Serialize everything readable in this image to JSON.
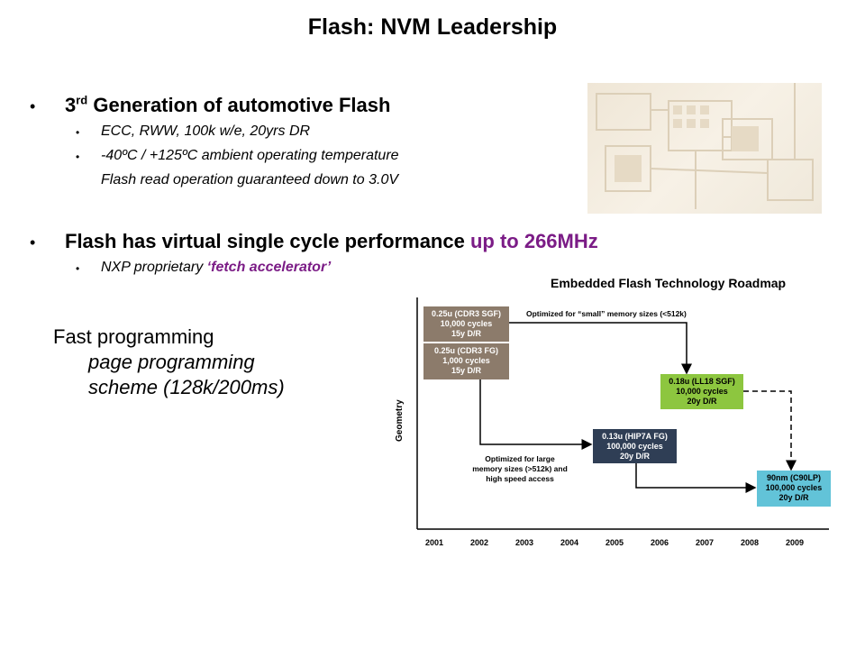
{
  "slide": {
    "title": "Flash: NVM Leadership"
  },
  "bullets": {
    "b1": {
      "pre": "3",
      "sup": "rd",
      "post": " Generation of automotive Flash",
      "sub1": "ECC, RWW, 100k w/e, 20yrs DR",
      "sub2": "-40ºC / +125ºC ambient operating temperature",
      "sub2_cont": "Flash read operation guaranteed down to 3.0V"
    },
    "b2": {
      "main": "Flash has virtual single cycle performance ",
      "accent": "up to 266MHz",
      "sub_pre": "NXP proprietary ",
      "sub_accent": "‘fetch accelerator’"
    },
    "fast": {
      "line1": "Fast programming",
      "line2": "page programming",
      "line3": "scheme (128k/200ms)"
    }
  },
  "chart_data": {
    "type": "diagram",
    "title": "Embedded Flash Technology Roadmap",
    "ylabel": "Geometry",
    "x_ticks": [
      "2001",
      "2002",
      "2003",
      "2004",
      "2005",
      "2006",
      "2007",
      "2008",
      "2009"
    ],
    "nodes": [
      {
        "id": "cdr3sgf",
        "lines": [
          "0.25u (CDR3 SGF)",
          "10,000 cycles",
          "15y D/R"
        ],
        "color": "#8c7b6b",
        "text_color": "#ffffff"
      },
      {
        "id": "cdr3fg",
        "lines": [
          "0.25u (CDR3 FG)",
          "1,000 cycles",
          "15y D/R"
        ],
        "color": "#8c7b6b",
        "text_color": "#ffffff"
      },
      {
        "id": "ll18",
        "lines": [
          "0.18u (LL18 SGF)",
          "10,000 cycles",
          "20y D/R"
        ],
        "color": "#8dc63f",
        "text_color": "#000000"
      },
      {
        "id": "hip7a",
        "lines": [
          "0.13u (HIP7A FG)",
          "100,000 cycles",
          "20y D/R"
        ],
        "color": "#2f3e55",
        "text_color": "#ffffff"
      },
      {
        "id": "c90lp",
        "lines": [
          "90nm (C90LP)",
          "100,000 cycles",
          "20y D/R"
        ],
        "color": "#62c3d8",
        "text_color": "#000000"
      }
    ],
    "notes": {
      "small": "Optimized for “small” memory sizes (<512k)",
      "large1": "Optimized for large",
      "large2": "memory sizes (>512k) and",
      "large3": "high speed access"
    }
  }
}
